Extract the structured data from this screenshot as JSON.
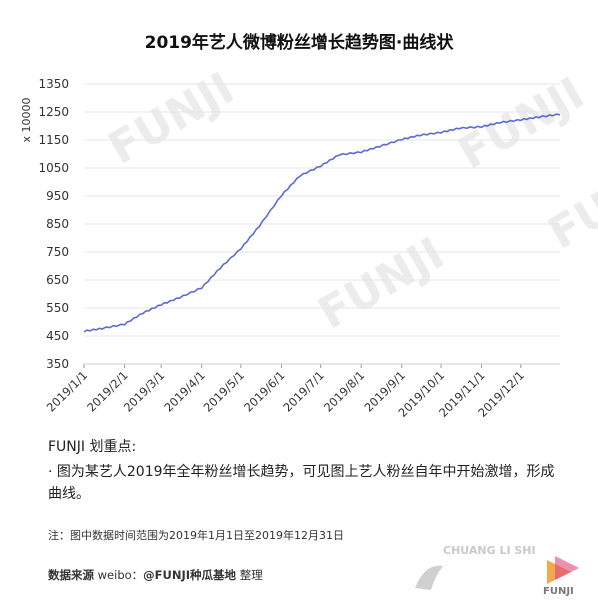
{
  "title": "2019年艺人微博粉丝增长趋势图·曲线状",
  "chart_data": {
    "type": "line",
    "title": "2019年艺人微博粉丝增长趋势图·曲线状",
    "xlabel": "",
    "ylabel": "x 10000",
    "ylim": [
      350,
      1350
    ],
    "yticks": [
      350,
      450,
      550,
      650,
      750,
      850,
      950,
      1050,
      1150,
      1250,
      1350
    ],
    "xlim": [
      "2019/1/1",
      "2019/12/31"
    ],
    "xtick_labels": [
      "2019/1/1",
      "2019/2/1",
      "2019/3/1",
      "2019/4/1",
      "2019/5/1",
      "2019/6/1",
      "2019/7/1",
      "2019/8/1",
      "2019/9/1",
      "2019/10/1",
      "2019/11/1",
      "2019/12/1"
    ],
    "grid": "horizontal",
    "legend": "none",
    "series": [
      {
        "color": "#5b6bd0",
        "x": [
          "2019/1/1",
          "2019/1/15",
          "2019/2/1",
          "2019/2/15",
          "2019/3/1",
          "2019/3/15",
          "2019/4/1",
          "2019/4/15",
          "2019/5/1",
          "2019/5/15",
          "2019/6/1",
          "2019/6/15",
          "2019/7/1",
          "2019/7/15",
          "2019/8/1",
          "2019/8/15",
          "2019/9/1",
          "2019/9/15",
          "2019/10/1",
          "2019/10/15",
          "2019/11/1",
          "2019/11/15",
          "2019/12/1",
          "2019/12/15",
          "2019/12/31"
        ],
        "values": [
          465,
          475,
          490,
          530,
          560,
          585,
          620,
          690,
          760,
          840,
          950,
          1020,
          1055,
          1095,
          1105,
          1125,
          1150,
          1165,
          1175,
          1190,
          1195,
          1210,
          1220,
          1230,
          1240
        ]
      }
    ]
  },
  "notes": {
    "heading": "FUNJI 划重点:",
    "body": "· 图为某艺人2019年全年粉丝增长趋势，可见图上艺人粉丝自年中开始激增，形成曲线。"
  },
  "footnote": "注：图中数据时间范围为2019年1月1日至2019年12月31日",
  "source": {
    "label": "数据来源",
    "text": "weibo：",
    "handle": "@FUNJI种瓜基地",
    "suffix": "整理"
  },
  "watermark": "FUNJI",
  "logo": {
    "text": "CHUANG LI SHI",
    "brand": "FUNJI"
  },
  "colors": {
    "line": "#5b6bd0",
    "grid": "#e6e6e6",
    "watermark": "#ececec"
  }
}
